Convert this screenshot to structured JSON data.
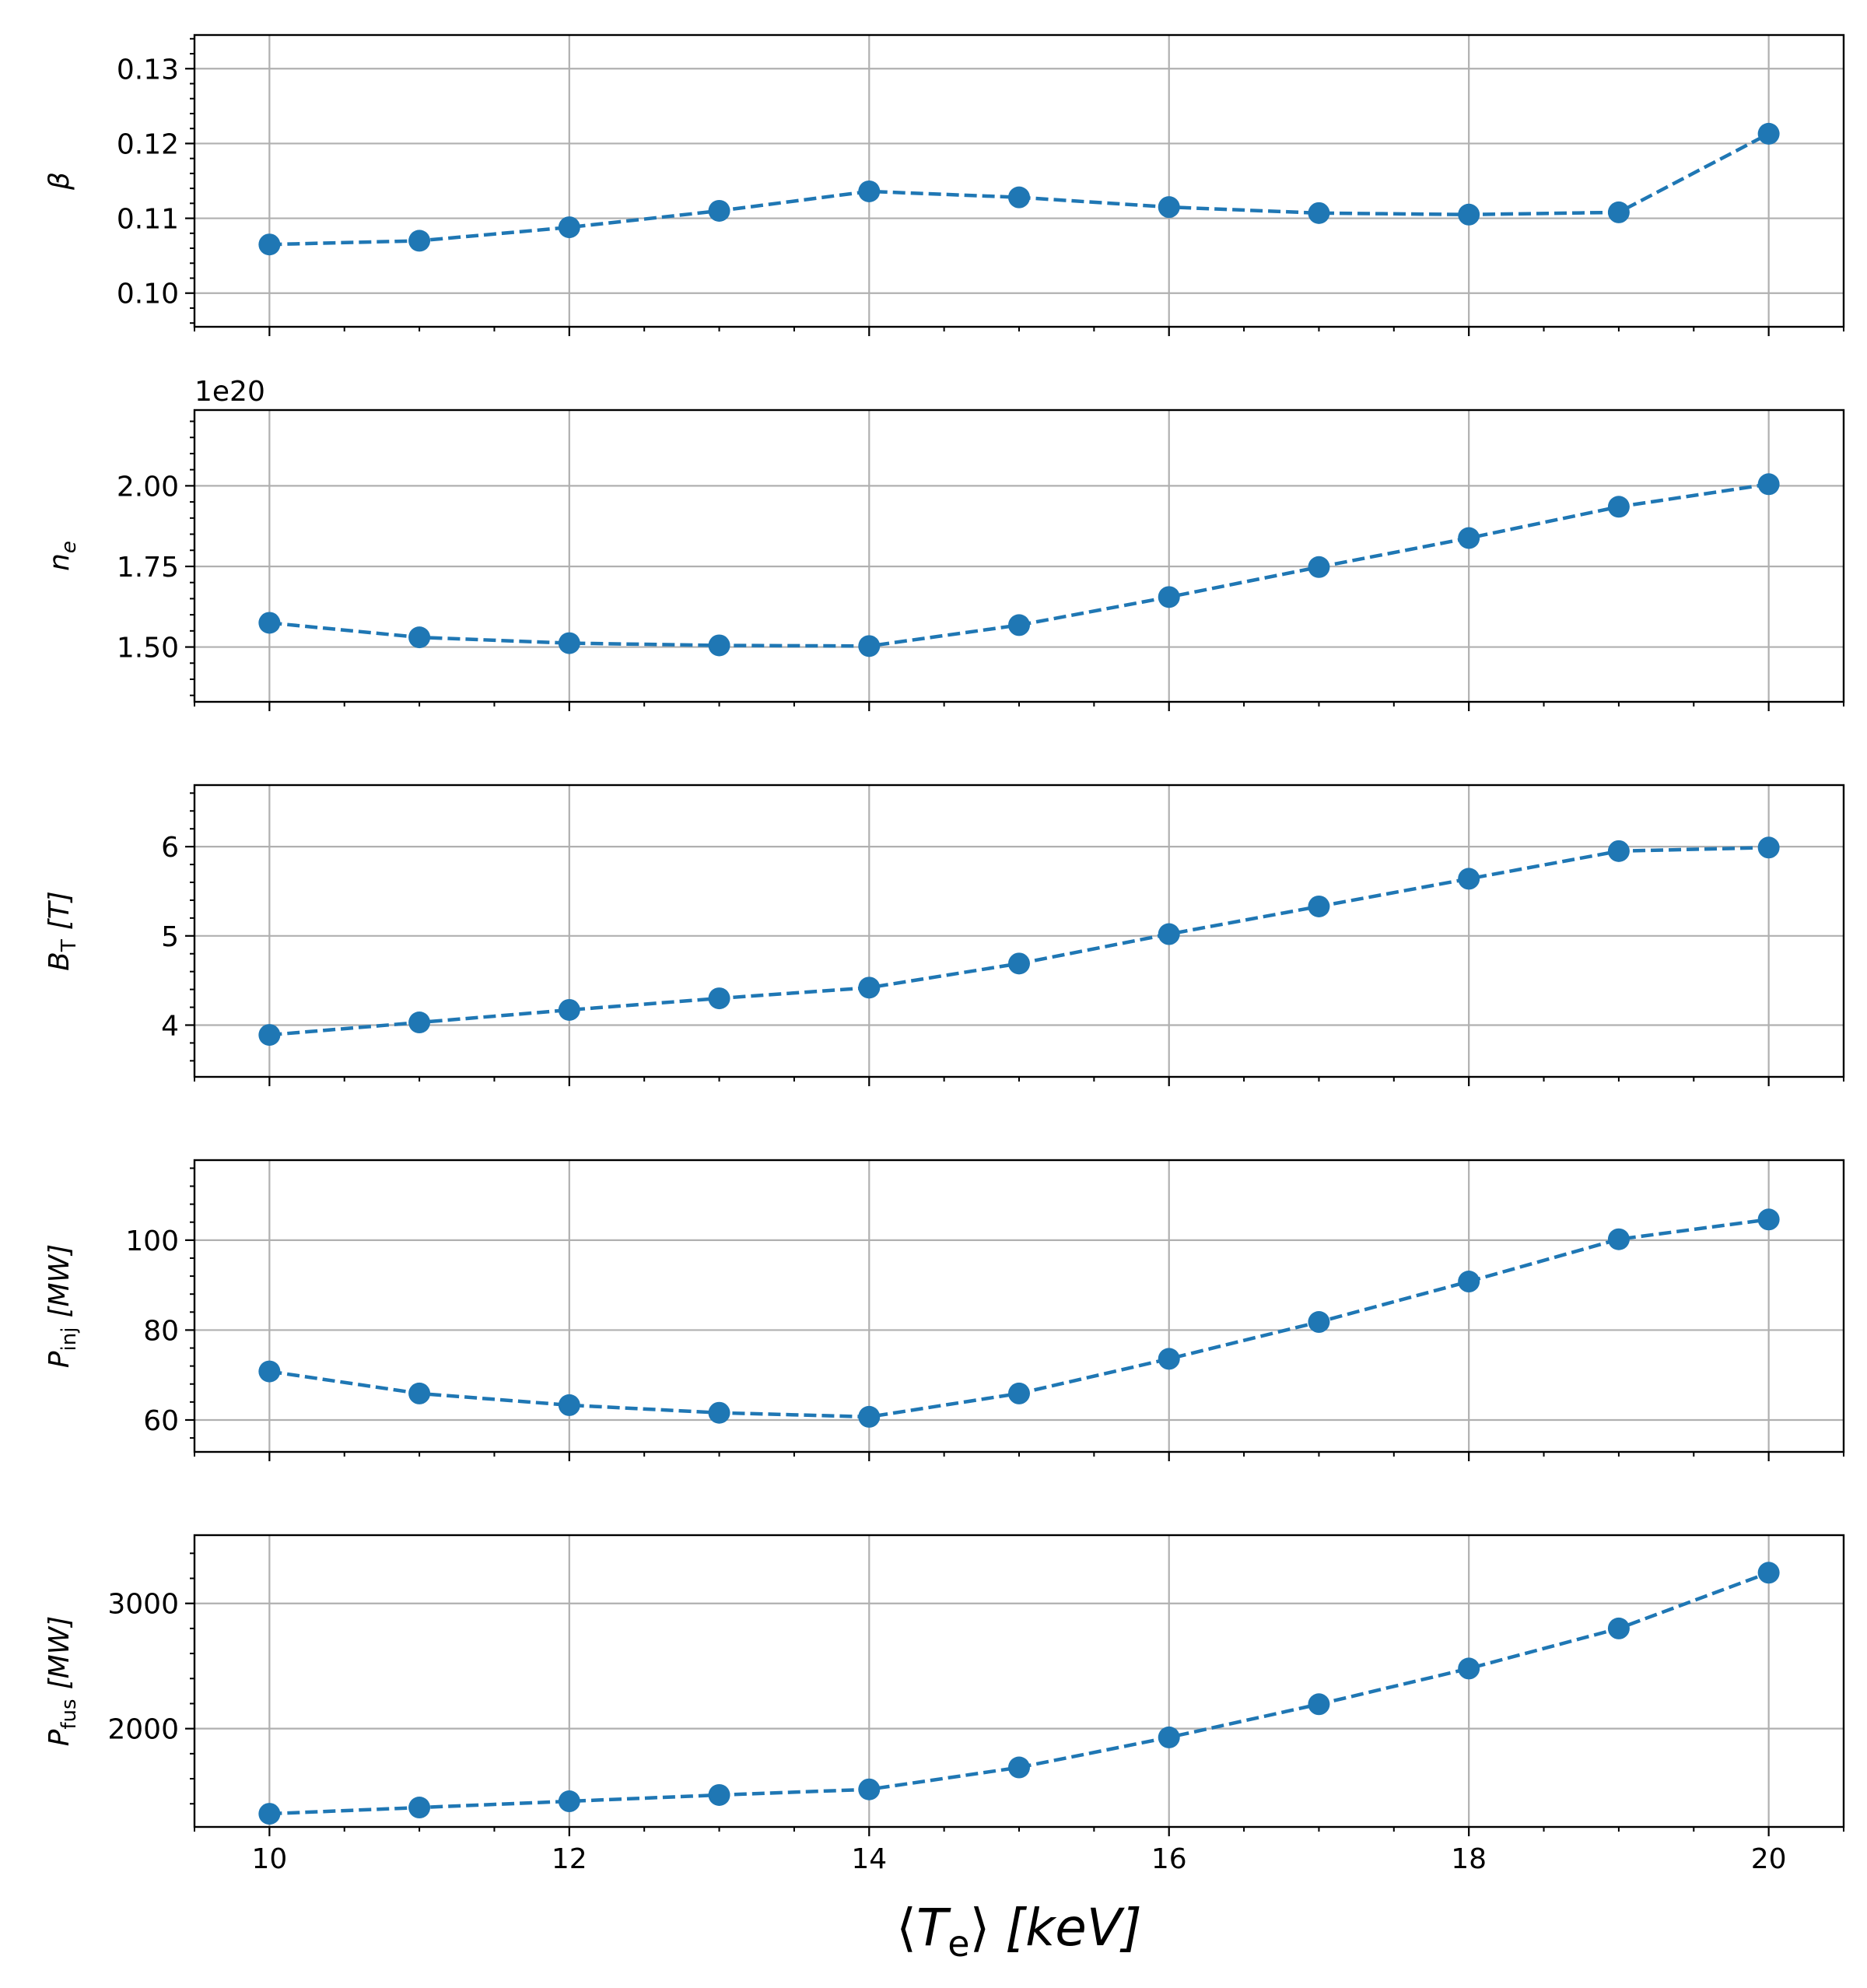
{
  "colors": {
    "series": "#1f77b4",
    "grid": "#b0b0b0",
    "axes": "#000000",
    "background": "#ffffff"
  },
  "chart_data": [
    {
      "type": "line",
      "ylabel_main": "β",
      "ylabel_sub": "",
      "ylabel_unit": "",
      "ylim": [
        0.0955,
        0.1345
      ],
      "yticks": [
        0.1,
        0.11,
        0.12,
        0.13
      ],
      "ytick_labels": [
        "0.10",
        "0.11",
        "0.12",
        "0.13"
      ],
      "offset_text": "",
      "y": [
        0.1065,
        0.107,
        0.1088,
        0.111,
        0.1136,
        0.1128,
        0.1115,
        0.1107,
        0.1105,
        0.1108,
        0.1213
      ],
      "grid": true,
      "line_style": "dashed",
      "marker": "circle"
    },
    {
      "type": "line",
      "ylabel_main": "n",
      "ylabel_sub": "e",
      "ylabel_unit": "",
      "ylim": [
        1.33,
        2.235
      ],
      "yticks": [
        1.5,
        1.75,
        2.0
      ],
      "ytick_labels": [
        "1.50",
        "1.75",
        "2.00"
      ],
      "offset_text": "1e20",
      "y": [
        1.575,
        1.53,
        1.512,
        1.505,
        1.503,
        1.568,
        1.655,
        1.748,
        1.838,
        1.935,
        2.005
      ],
      "grid": true,
      "line_style": "dashed",
      "marker": "circle"
    },
    {
      "type": "line",
      "ylabel_main": "B",
      "ylabel_sub": "T",
      "ylabel_unit": "[T]",
      "ylim": [
        3.42,
        6.69
      ],
      "yticks": [
        4,
        5,
        6
      ],
      "ytick_labels": [
        "4",
        "5",
        "6"
      ],
      "offset_text": "",
      "y": [
        3.89,
        4.03,
        4.17,
        4.3,
        4.42,
        4.69,
        5.02,
        5.33,
        5.64,
        5.95,
        5.99
      ],
      "grid": true,
      "line_style": "dashed",
      "marker": "circle"
    },
    {
      "type": "line",
      "ylabel_main": "P",
      "ylabel_sub": "inj",
      "ylabel_unit": "[MW]",
      "ylim": [
        52.9,
        117.8
      ],
      "yticks": [
        60,
        80,
        100
      ],
      "ytick_labels": [
        "60",
        "80",
        "100"
      ],
      "offset_text": "",
      "y": [
        70.8,
        65.9,
        63.3,
        61.6,
        60.7,
        65.9,
        73.6,
        81.8,
        90.8,
        100.2,
        104.6
      ],
      "grid": true,
      "line_style": "dashed",
      "marker": "circle"
    },
    {
      "type": "line",
      "ylabel_main": "P",
      "ylabel_sub": "fus",
      "ylabel_unit": "[MW]",
      "ylim": [
        1215,
        3545
      ],
      "yticks": [
        2000,
        3000
      ],
      "ytick_labels": [
        "2000",
        "3000"
      ],
      "offset_text": "",
      "y": [
        1320,
        1370,
        1420,
        1470,
        1515,
        1690,
        1930,
        2195,
        2480,
        2800,
        3245
      ],
      "grid": true,
      "line_style": "dashed",
      "marker": "circle"
    }
  ],
  "shared_x": {
    "x": [
      10,
      11,
      12,
      13,
      14,
      15,
      16,
      17,
      18,
      19,
      20
    ],
    "xlim": [
      9.5,
      20.5
    ],
    "xticks": [
      10,
      12,
      14,
      16,
      18,
      20
    ],
    "xtick_labels": [
      "10",
      "12",
      "14",
      "16",
      "18",
      "20"
    ],
    "xlabel_main": "T",
    "xlabel_sub": "e",
    "xlabel_unit": "[keV]"
  }
}
